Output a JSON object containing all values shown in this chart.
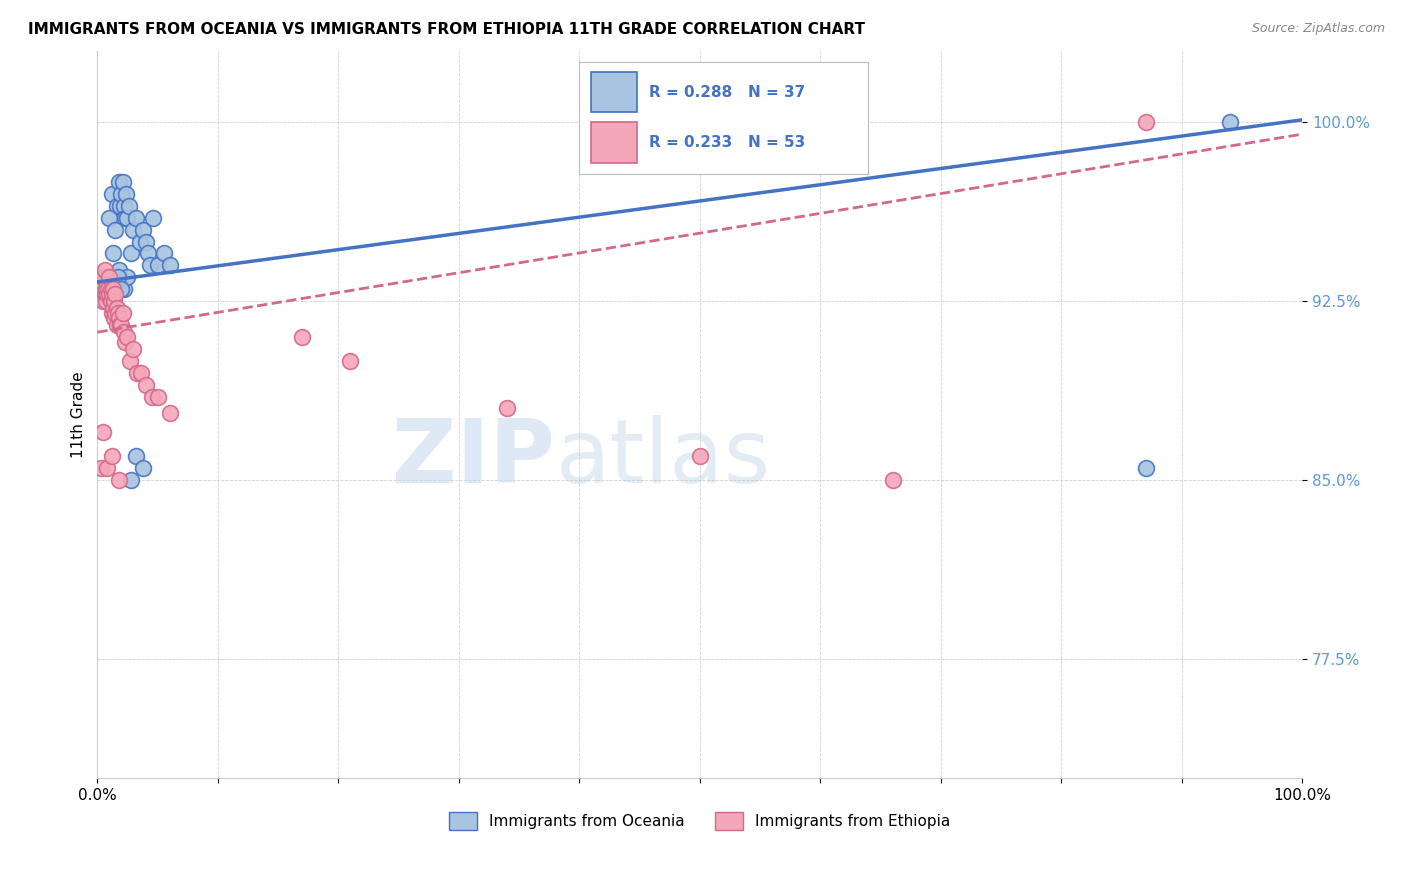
{
  "title": "IMMIGRANTS FROM OCEANIA VS IMMIGRANTS FROM ETHIOPIA 11TH GRADE CORRELATION CHART",
  "source": "Source: ZipAtlas.com",
  "ylabel": "11th Grade",
  "xlim": [
    0.0,
    1.0
  ],
  "ylim": [
    0.725,
    1.03
  ],
  "yticks": [
    0.775,
    0.85,
    0.925,
    1.0
  ],
  "ytick_labels": [
    "77.5%",
    "85.0%",
    "92.5%",
    "100.0%"
  ],
  "xticks": [
    0.0,
    0.1,
    0.2,
    0.3,
    0.4,
    0.5,
    0.6,
    0.7,
    0.8,
    0.9,
    1.0
  ],
  "xtick_labels": [
    "0.0%",
    "",
    "",
    "",
    "",
    "",
    "",
    "",
    "",
    "",
    "100.0%"
  ],
  "color_oceania": "#a8c4e0",
  "color_oceania_line": "#4472c4",
  "color_ethiopia": "#f4a7b9",
  "color_ethiopia_line": "#d4688a",
  "watermark_zip": "ZIP",
  "watermark_atlas": "atlas",
  "oceania_x": [
    0.005,
    0.012,
    0.016,
    0.018,
    0.019,
    0.02,
    0.021,
    0.022,
    0.023,
    0.024,
    0.025,
    0.026,
    0.028,
    0.03,
    0.032,
    0.035,
    0.038,
    0.04,
    0.042,
    0.044,
    0.046,
    0.05,
    0.055,
    0.06,
    0.018,
    0.022,
    0.025,
    0.01,
    0.015,
    0.013,
    0.017,
    0.02,
    0.028,
    0.032,
    0.038,
    0.87,
    0.94
  ],
  "oceania_y": [
    0.93,
    0.97,
    0.965,
    0.975,
    0.965,
    0.97,
    0.975,
    0.965,
    0.96,
    0.97,
    0.96,
    0.965,
    0.945,
    0.955,
    0.96,
    0.95,
    0.955,
    0.95,
    0.945,
    0.94,
    0.96,
    0.94,
    0.945,
    0.94,
    0.938,
    0.93,
    0.935,
    0.96,
    0.955,
    0.945,
    0.935,
    0.93,
    0.85,
    0.86,
    0.855,
    0.855,
    1.0
  ],
  "ethiopia_x": [
    0.002,
    0.003,
    0.004,
    0.005,
    0.005,
    0.006,
    0.006,
    0.007,
    0.007,
    0.008,
    0.008,
    0.009,
    0.01,
    0.01,
    0.011,
    0.011,
    0.012,
    0.012,
    0.013,
    0.013,
    0.014,
    0.014,
    0.015,
    0.015,
    0.016,
    0.016,
    0.017,
    0.018,
    0.019,
    0.02,
    0.021,
    0.022,
    0.023,
    0.025,
    0.027,
    0.03,
    0.033,
    0.036,
    0.04,
    0.045,
    0.05,
    0.06,
    0.17,
    0.21,
    0.34,
    0.5,
    0.66,
    0.87,
    0.003,
    0.005,
    0.008,
    0.012,
    0.018
  ],
  "ethiopia_y": [
    0.93,
    0.932,
    0.928,
    0.925,
    0.935,
    0.928,
    0.938,
    0.93,
    0.925,
    0.932,
    0.928,
    0.93,
    0.928,
    0.935,
    0.925,
    0.93,
    0.92,
    0.928,
    0.922,
    0.93,
    0.918,
    0.925,
    0.92,
    0.928,
    0.915,
    0.922,
    0.92,
    0.918,
    0.915,
    0.915,
    0.92,
    0.912,
    0.908,
    0.91,
    0.9,
    0.905,
    0.895,
    0.895,
    0.89,
    0.885,
    0.885,
    0.878,
    0.91,
    0.9,
    0.88,
    0.86,
    0.85,
    1.0,
    0.855,
    0.87,
    0.855,
    0.86,
    0.85
  ]
}
